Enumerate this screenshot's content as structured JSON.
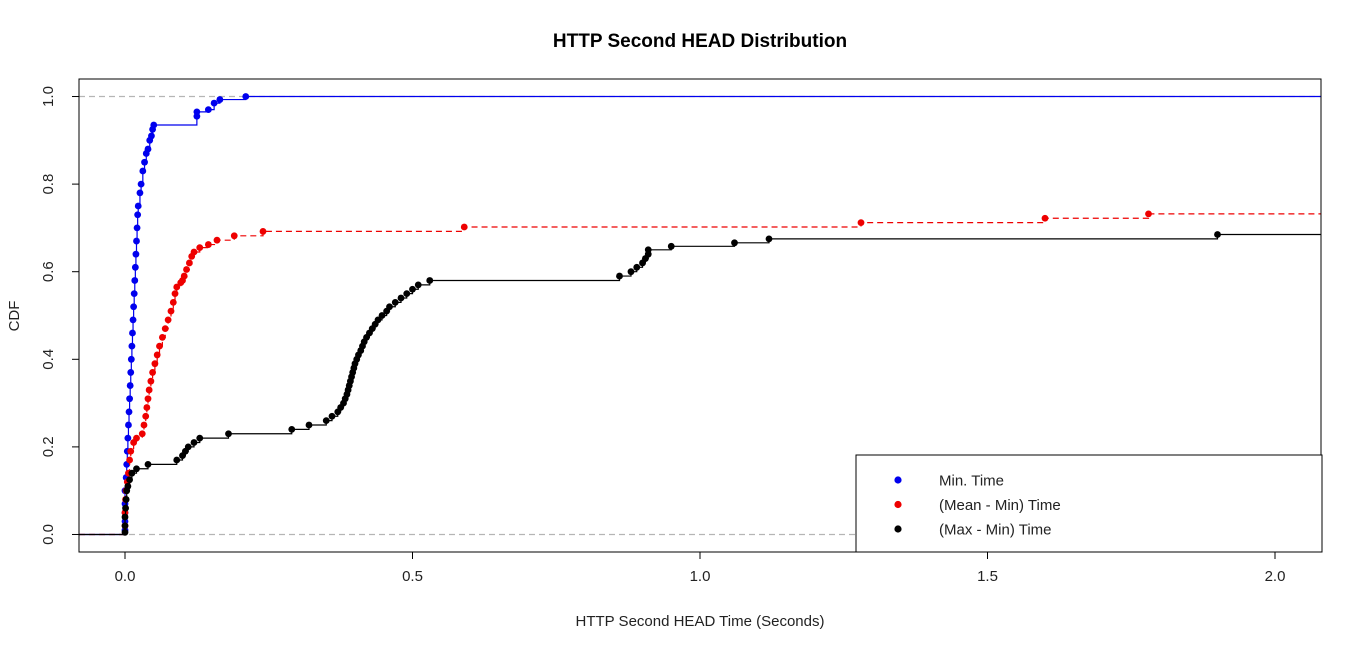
{
  "chart_data": {
    "type": "scatter",
    "title": "HTTP Second HEAD Distribution",
    "xlabel": "HTTP Second HEAD Time (Seconds)",
    "ylabel": "CDF",
    "xlim": [
      -0.08,
      2.08
    ],
    "ylim": [
      -0.04,
      1.04
    ],
    "x_ticks": [
      0.0,
      0.5,
      1.0,
      1.5,
      2.0
    ],
    "x_tick_labels": [
      "0.0",
      "0.5",
      "1.0",
      "1.5",
      "2.0"
    ],
    "y_ticks": [
      0.0,
      0.2,
      0.4,
      0.6,
      0.8,
      1.0
    ],
    "y_tick_labels": [
      "0.0",
      "0.2",
      "0.4",
      "0.6",
      "0.8",
      "1.0"
    ],
    "reference_lines_y": [
      0.0,
      1.0
    ],
    "grid": false,
    "legend_position": "bottom-right",
    "series": [
      {
        "name": "Min. Time",
        "color": "#0000ee",
        "line_style": "solid",
        "points": [
          [
            0,
            0.01
          ],
          [
            0,
            0.03
          ],
          [
            0,
            0.05
          ],
          [
            0,
            0.07
          ],
          [
            0,
            0.1
          ],
          [
            0.002,
            0.13
          ],
          [
            0.003,
            0.16
          ],
          [
            0.004,
            0.19
          ],
          [
            0.005,
            0.22
          ],
          [
            0.006,
            0.25
          ],
          [
            0.007,
            0.28
          ],
          [
            0.008,
            0.31
          ],
          [
            0.009,
            0.34
          ],
          [
            0.01,
            0.37
          ],
          [
            0.011,
            0.4
          ],
          [
            0.012,
            0.43
          ],
          [
            0.013,
            0.46
          ],
          [
            0.014,
            0.49
          ],
          [
            0.015,
            0.52
          ],
          [
            0.016,
            0.55
          ],
          [
            0.017,
            0.58
          ],
          [
            0.018,
            0.61
          ],
          [
            0.019,
            0.64
          ],
          [
            0.02,
            0.67
          ],
          [
            0.021,
            0.7
          ],
          [
            0.022,
            0.73
          ],
          [
            0.023,
            0.75
          ],
          [
            0.026,
            0.78
          ],
          [
            0.028,
            0.8
          ],
          [
            0.031,
            0.83
          ],
          [
            0.034,
            0.85
          ],
          [
            0.037,
            0.87
          ],
          [
            0.04,
            0.88
          ],
          [
            0.043,
            0.9
          ],
          [
            0.046,
            0.91
          ],
          [
            0.048,
            0.925
          ],
          [
            0.05,
            0.935
          ],
          [
            0.125,
            0.955
          ],
          [
            0.125,
            0.965
          ],
          [
            0.145,
            0.97
          ],
          [
            0.155,
            0.985
          ],
          [
            0.165,
            0.993
          ],
          [
            0.21,
            1.0
          ]
        ],
        "tail_y": 1.0
      },
      {
        "name": "(Mean - Min) Time",
        "color": "#ee0000",
        "line_style": "dashed",
        "points": [
          [
            0,
            0.02
          ],
          [
            0,
            0.05
          ],
          [
            0.001,
            0.08
          ],
          [
            0.002,
            0.1
          ],
          [
            0.004,
            0.12
          ],
          [
            0.006,
            0.14
          ],
          [
            0.008,
            0.17
          ],
          [
            0.01,
            0.19
          ],
          [
            0.015,
            0.21
          ],
          [
            0.02,
            0.22
          ],
          [
            0.03,
            0.23
          ],
          [
            0.033,
            0.25
          ],
          [
            0.036,
            0.27
          ],
          [
            0.038,
            0.29
          ],
          [
            0.04,
            0.31
          ],
          [
            0.042,
            0.33
          ],
          [
            0.045,
            0.35
          ],
          [
            0.048,
            0.37
          ],
          [
            0.052,
            0.39
          ],
          [
            0.056,
            0.41
          ],
          [
            0.06,
            0.43
          ],
          [
            0.065,
            0.45
          ],
          [
            0.07,
            0.47
          ],
          [
            0.075,
            0.49
          ],
          [
            0.08,
            0.51
          ],
          [
            0.084,
            0.53
          ],
          [
            0.087,
            0.55
          ],
          [
            0.09,
            0.565
          ],
          [
            0.097,
            0.575
          ],
          [
            0.1,
            0.58
          ],
          [
            0.103,
            0.59
          ],
          [
            0.107,
            0.605
          ],
          [
            0.112,
            0.62
          ],
          [
            0.116,
            0.635
          ],
          [
            0.12,
            0.645
          ],
          [
            0.13,
            0.655
          ],
          [
            0.145,
            0.662
          ],
          [
            0.16,
            0.672
          ],
          [
            0.19,
            0.682
          ],
          [
            0.24,
            0.692
          ],
          [
            0.59,
            0.702
          ],
          [
            1.28,
            0.712
          ],
          [
            1.6,
            0.722
          ],
          [
            1.78,
            0.732
          ]
        ],
        "tail_y": 0.732
      },
      {
        "name": "(Max - Min) Time",
        "color": "#000000",
        "line_style": "solid",
        "points": [
          [
            0,
            0.005
          ],
          [
            0,
            0.02
          ],
          [
            0,
            0.04
          ],
          [
            0.001,
            0.06
          ],
          [
            0.002,
            0.08
          ],
          [
            0.003,
            0.1
          ],
          [
            0.005,
            0.11
          ],
          [
            0.008,
            0.125
          ],
          [
            0.012,
            0.14
          ],
          [
            0.02,
            0.15
          ],
          [
            0.04,
            0.16
          ],
          [
            0.09,
            0.17
          ],
          [
            0.1,
            0.18
          ],
          [
            0.105,
            0.19
          ],
          [
            0.11,
            0.2
          ],
          [
            0.12,
            0.21
          ],
          [
            0.13,
            0.22
          ],
          [
            0.18,
            0.23
          ],
          [
            0.29,
            0.24
          ],
          [
            0.32,
            0.25
          ],
          [
            0.35,
            0.26
          ],
          [
            0.36,
            0.27
          ],
          [
            0.37,
            0.28
          ],
          [
            0.375,
            0.29
          ],
          [
            0.38,
            0.3
          ],
          [
            0.383,
            0.31
          ],
          [
            0.386,
            0.32
          ],
          [
            0.388,
            0.33
          ],
          [
            0.39,
            0.34
          ],
          [
            0.392,
            0.35
          ],
          [
            0.394,
            0.36
          ],
          [
            0.396,
            0.37
          ],
          [
            0.398,
            0.38
          ],
          [
            0.4,
            0.39
          ],
          [
            0.403,
            0.4
          ],
          [
            0.406,
            0.41
          ],
          [
            0.41,
            0.42
          ],
          [
            0.413,
            0.43
          ],
          [
            0.416,
            0.44
          ],
          [
            0.42,
            0.45
          ],
          [
            0.425,
            0.46
          ],
          [
            0.43,
            0.47
          ],
          [
            0.435,
            0.48
          ],
          [
            0.44,
            0.49
          ],
          [
            0.447,
            0.5
          ],
          [
            0.455,
            0.51
          ],
          [
            0.46,
            0.52
          ],
          [
            0.47,
            0.53
          ],
          [
            0.48,
            0.54
          ],
          [
            0.49,
            0.55
          ],
          [
            0.5,
            0.56
          ],
          [
            0.51,
            0.57
          ],
          [
            0.53,
            0.58
          ],
          [
            0.86,
            0.59
          ],
          [
            0.88,
            0.6
          ],
          [
            0.89,
            0.61
          ],
          [
            0.9,
            0.62
          ],
          [
            0.905,
            0.63
          ],
          [
            0.91,
            0.64
          ],
          [
            0.91,
            0.65
          ],
          [
            0.95,
            0.658
          ],
          [
            1.06,
            0.666
          ],
          [
            1.12,
            0.675
          ],
          [
            1.9,
            0.685
          ]
        ],
        "tail_y": 0.685
      }
    ]
  }
}
